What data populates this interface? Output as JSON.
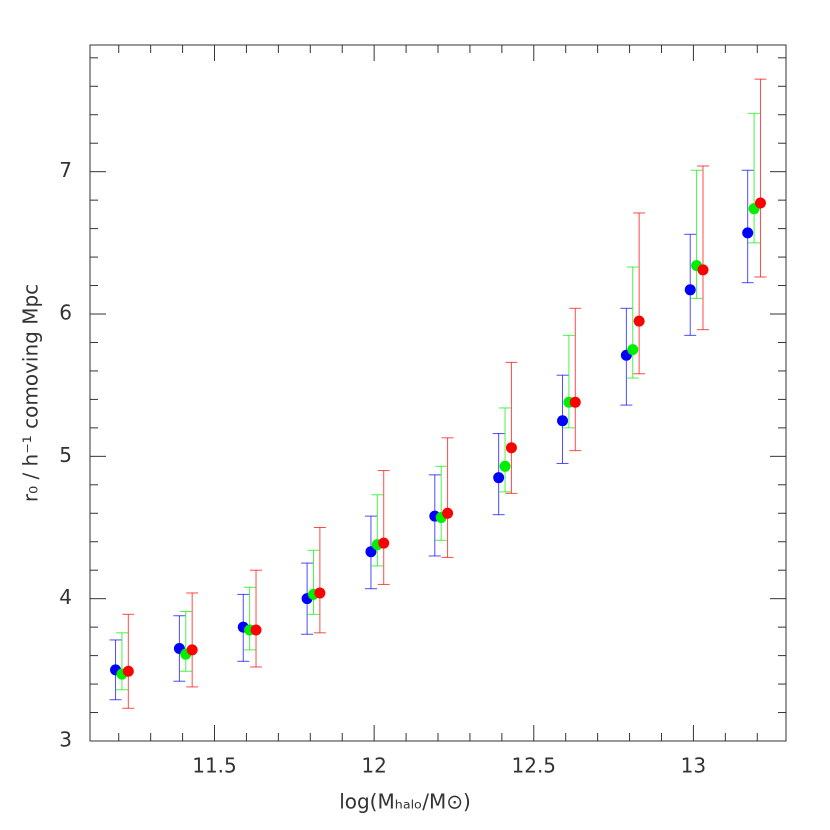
{
  "chart_data": {
    "type": "errorbar-scatter",
    "xlabel": "log(Mₕₐₗₒ/M⊙)",
    "ylabel": "r₀ / h⁻¹ comoving Mpc",
    "xlim": [
      11.11,
      13.29
    ],
    "ylim": [
      3,
      7.89
    ],
    "xticks": [
      11.5,
      12,
      12.5,
      13
    ],
    "yticks": [
      3,
      4,
      5,
      6,
      7
    ],
    "xminorticks": [
      11.2,
      11.3,
      11.4,
      11.6,
      11.7,
      11.8,
      11.9,
      12.1,
      12.2,
      12.3,
      12.4,
      12.6,
      12.7,
      12.8,
      12.9,
      13.1,
      13.2
    ],
    "yminorticks": [
      3.2,
      3.4,
      3.6,
      3.8,
      4.2,
      4.4,
      4.6,
      4.8,
      5.2,
      5.4,
      5.6,
      5.8,
      6.2,
      6.4,
      6.6,
      6.8,
      7.2,
      7.4,
      7.6,
      7.8
    ],
    "series": [
      {
        "color": "#0000ff",
        "x": [
          11.19,
          11.39,
          11.59,
          11.79,
          11.99,
          12.19,
          12.39,
          12.59,
          12.79,
          12.99,
          13.17
        ],
        "values": [
          3.5,
          3.65,
          3.8,
          4.0,
          4.33,
          4.58,
          4.85,
          5.25,
          5.71,
          6.17,
          6.57
        ],
        "lower": [
          3.29,
          3.42,
          3.56,
          3.75,
          4.07,
          4.3,
          4.59,
          4.95,
          5.36,
          5.85,
          6.22
        ],
        "upper": [
          3.71,
          3.88,
          4.03,
          4.25,
          4.58,
          4.87,
          5.16,
          5.57,
          6.04,
          6.56,
          7.01
        ]
      },
      {
        "color": "#00ee00",
        "x": [
          11.21,
          11.41,
          11.61,
          11.81,
          12.01,
          12.21,
          12.41,
          12.61,
          12.81,
          13.01,
          13.19
        ],
        "values": [
          3.47,
          3.61,
          3.78,
          4.03,
          4.38,
          4.57,
          4.93,
          5.38,
          5.75,
          6.34,
          6.74
        ],
        "lower": [
          3.36,
          3.49,
          3.64,
          3.89,
          4.23,
          4.41,
          4.75,
          5.2,
          5.55,
          6.11,
          6.5
        ],
        "upper": [
          3.76,
          3.91,
          4.08,
          4.34,
          4.73,
          4.93,
          5.34,
          5.85,
          6.33,
          7.01,
          7.41
        ]
      },
      {
        "color": "#ff0000",
        "x": [
          11.23,
          11.43,
          11.63,
          11.83,
          12.03,
          12.23,
          12.43,
          12.63,
          12.83,
          13.03,
          13.21
        ],
        "values": [
          3.49,
          3.64,
          3.78,
          4.04,
          4.39,
          4.6,
          5.06,
          5.38,
          5.95,
          6.31,
          6.78
        ],
        "lower": [
          3.23,
          3.38,
          3.52,
          3.76,
          4.1,
          4.29,
          4.74,
          5.04,
          5.58,
          5.89,
          6.26
        ],
        "upper": [
          3.89,
          4.04,
          4.2,
          4.5,
          4.9,
          5.13,
          5.66,
          6.04,
          6.71,
          7.04,
          7.65
        ]
      }
    ]
  }
}
